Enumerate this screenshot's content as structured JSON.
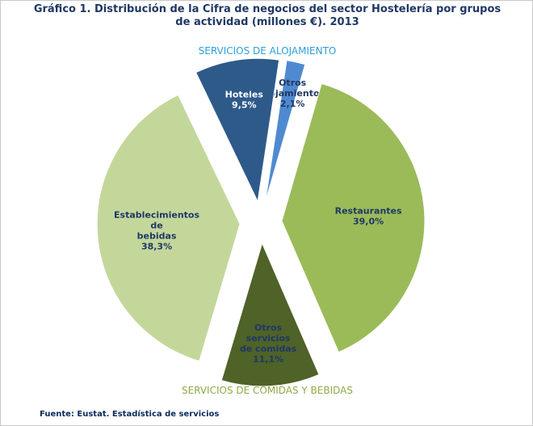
{
  "chart_data": {
    "type": "pie",
    "title_lines": [
      "Gráfico 1. Distribución de la Cifra de negocios del sector Hostelería por grupos",
      "de actividad (millones €). 2013"
    ],
    "group_labels": {
      "alojamiento": "SERVICIOS DE ALOJAMIENTO",
      "comidas": "SERVICIOS DE COMIDAS Y BEBIDAS"
    },
    "slices": [
      {
        "key": "otros-alojamientos",
        "label_lines": [
          "Otros",
          "alojamientos",
          "2,1%"
        ],
        "value": 2.1,
        "color": "#4f8ad0",
        "label_color": "#1f3864"
      },
      {
        "key": "restaurantes",
        "label_lines": [
          "Restaurantes",
          "39,0%"
        ],
        "value": 39.0,
        "color": "#9bbb59",
        "label_color": "#1f3864"
      },
      {
        "key": "otros-servicios-comidas",
        "label_lines": [
          "Otros",
          "servicios",
          "de comidas",
          "11,1%"
        ],
        "value": 11.1,
        "color": "#4f6228",
        "label_color": "#1f3864"
      },
      {
        "key": "establecimientos-bebidas",
        "label_lines": [
          "Establecimientos",
          "de",
          "bebidas",
          "38,3%"
        ],
        "value": 38.3,
        "color": "#c4d79b",
        "label_color": "#1f3864"
      },
      {
        "key": "hoteles",
        "label_lines": [
          "Hoteles",
          "9,5%"
        ],
        "value": 9.5,
        "color": "#2e5a8a",
        "label_color": "#ffffff"
      }
    ]
  },
  "source": "Fuente: Eustat. Estadística de servicios"
}
